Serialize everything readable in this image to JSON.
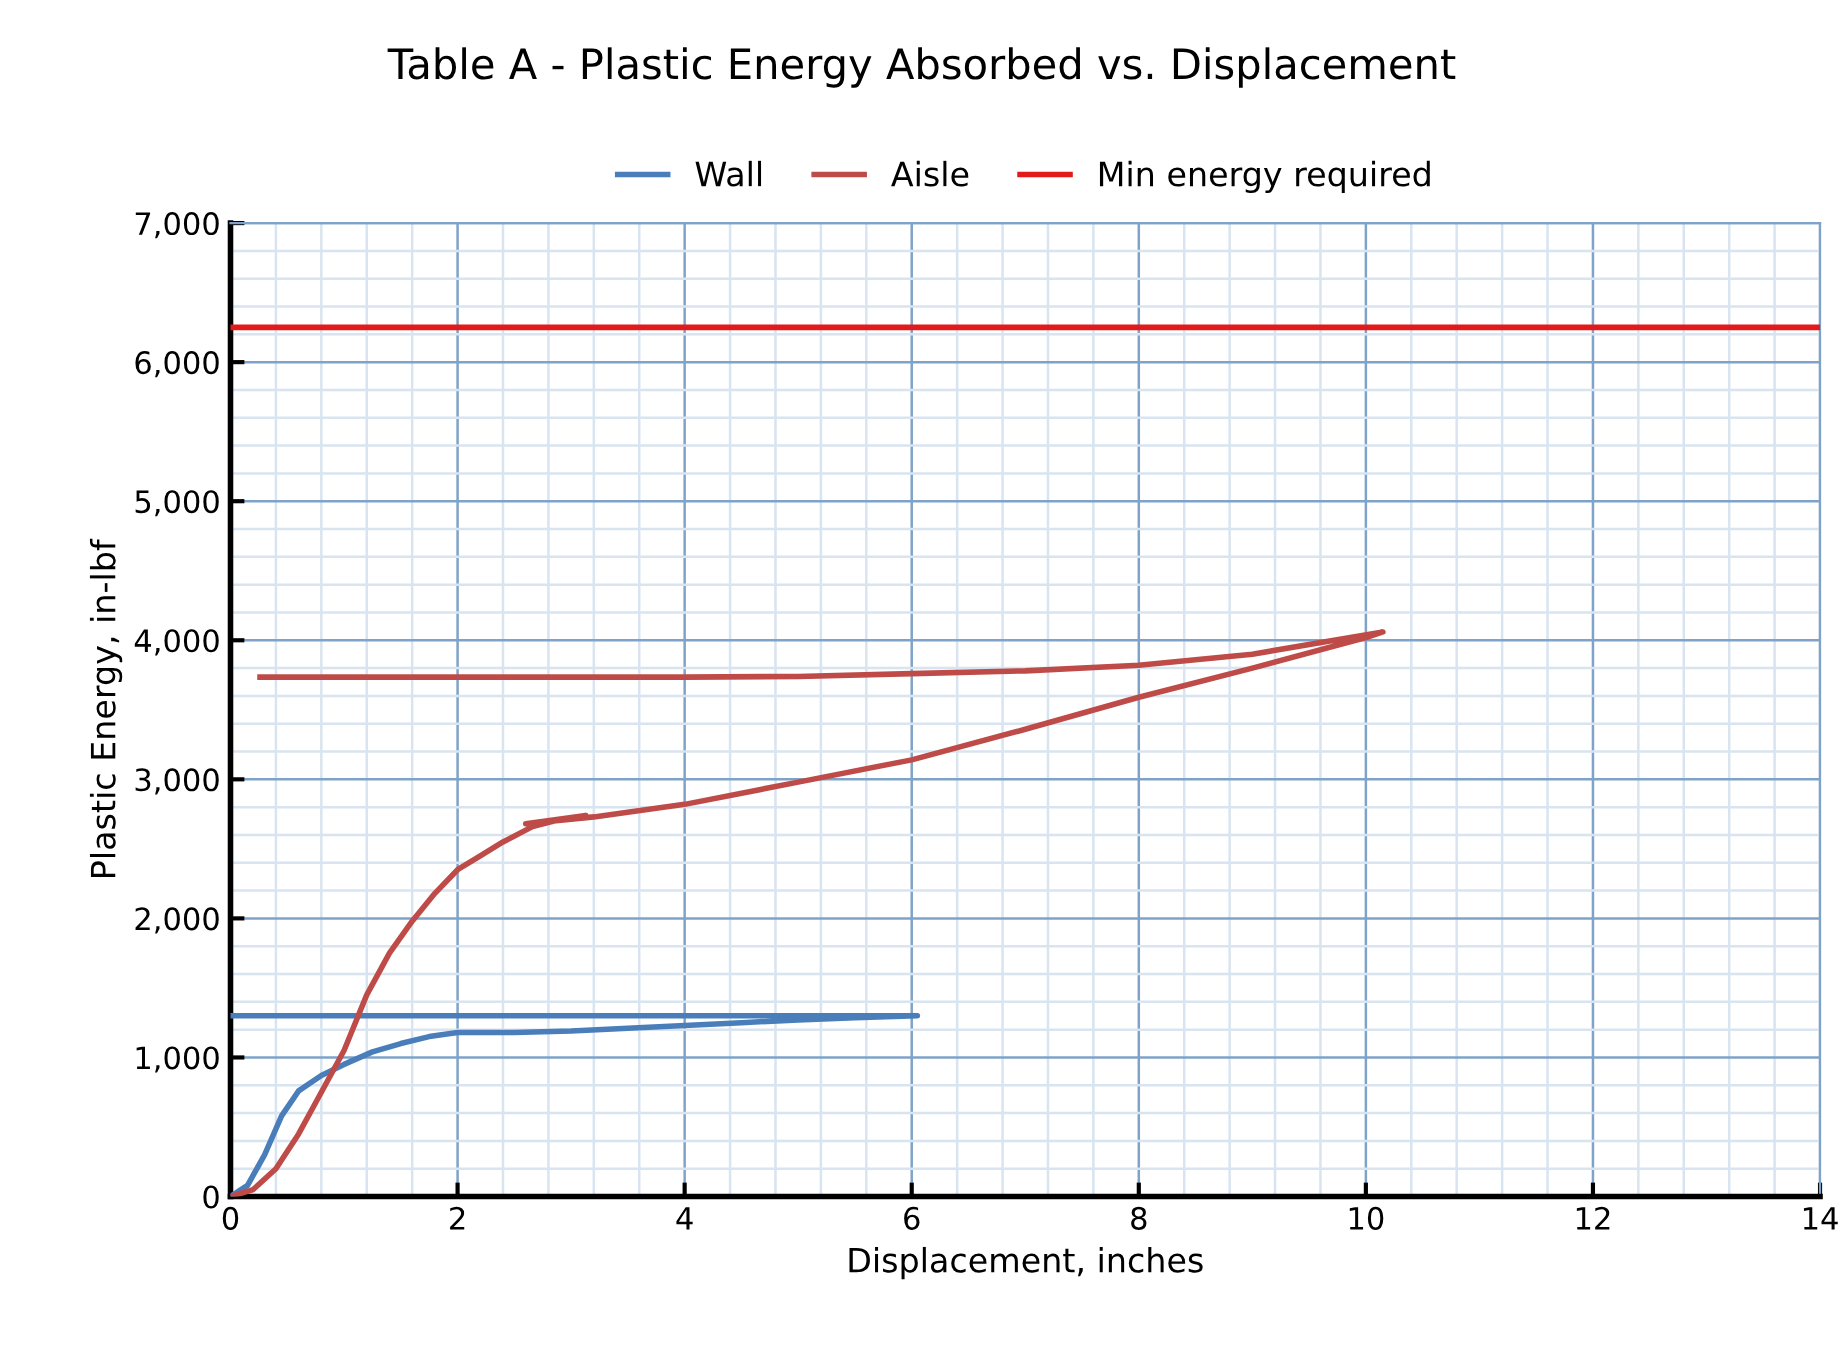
{
  "chart_data": {
    "type": "line",
    "title": "Table A - Plastic Energy Absorbed vs. Displacement",
    "xlabel": "Displacement, inches",
    "ylabel": "Plastic Energy, in-lbf",
    "xlim": [
      0,
      14
    ],
    "xticks": [
      0,
      2,
      4,
      6,
      8,
      10,
      12,
      14
    ],
    "ylim": [
      0,
      7000
    ],
    "yticks": [
      {
        "value": 0,
        "label": "0"
      },
      {
        "value": 1000,
        "label": "1,000"
      },
      {
        "value": 2000,
        "label": "2,000"
      },
      {
        "value": 3000,
        "label": "3,000"
      },
      {
        "value": 4000,
        "label": "4,000"
      },
      {
        "value": 5000,
        "label": "5,000"
      },
      {
        "value": 6000,
        "label": "6,000"
      },
      {
        "value": 7000,
        "label": "7,000"
      }
    ],
    "grid": true,
    "legend": "top",
    "marker": "none",
    "line_style": "solid",
    "series": [
      {
        "name": "Wall",
        "color": "#4a7ebb",
        "x": [
          0,
          0.15,
          0.3,
          0.45,
          0.6,
          0.8,
          1.0,
          1.25,
          1.5,
          1.75,
          2.0,
          2.5,
          3.0,
          3.5,
          4.0,
          4.5,
          5.0,
          5.5,
          6.05,
          4.0,
          2.0,
          0.0
        ],
        "values": [
          0,
          80,
          300,
          580,
          760,
          870,
          950,
          1040,
          1100,
          1150,
          1180,
          1180,
          1190,
          1210,
          1230,
          1250,
          1270,
          1285,
          1300,
          1300,
          1300,
          1300
        ]
      },
      {
        "name": "Aisle",
        "color": "#be4b48",
        "x": [
          0,
          0.2,
          0.4,
          0.6,
          0.8,
          1.0,
          1.2,
          1.4,
          1.6,
          1.8,
          2.0,
          2.2,
          2.4,
          2.66,
          2.9,
          3.13,
          2.6,
          3.2,
          4.0,
          5.0,
          6.0,
          7.0,
          8.0,
          9.0,
          10.0,
          10.15,
          9.0,
          8.0,
          7.0,
          6.0,
          5.0,
          4.0,
          2.0,
          0.26
        ],
        "values": [
          0,
          50,
          200,
          450,
          750,
          1050,
          1450,
          1750,
          1980,
          2180,
          2350,
          2450,
          2550,
          2660,
          2710,
          2740,
          2680,
          2730,
          2820,
          2980,
          3140,
          3360,
          3590,
          3800,
          4020,
          4060,
          3900,
          3820,
          3780,
          3760,
          3740,
          3735,
          3735,
          3735
        ]
      },
      {
        "name": "Min energy required",
        "color": "#e31a1c",
        "x": [
          0,
          14
        ],
        "values": [
          6250,
          6250
        ]
      }
    ]
  }
}
